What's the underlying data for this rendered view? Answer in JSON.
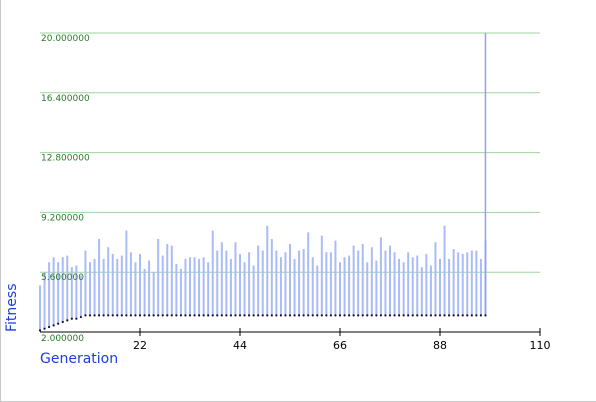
{
  "chart_data": {
    "type": "bar",
    "xlabel": "Generation",
    "ylabel": "Fitness",
    "xlim": [
      0,
      110
    ],
    "ylim": [
      2.0,
      20.0
    ],
    "grid": true,
    "x_ticks": [
      "22",
      "44",
      "66",
      "88",
      "110"
    ],
    "y_ticks": [
      "2.000000",
      "5.600000",
      "9.200000",
      "12.800000",
      "16.400000",
      "20.000000"
    ],
    "series": [
      {
        "kind": "range-bars",
        "x": [
          0,
          1,
          2,
          3,
          4,
          5,
          6,
          7,
          8,
          9,
          10,
          11,
          12,
          13,
          14,
          15,
          16,
          17,
          18,
          19,
          20,
          21,
          22,
          23,
          24,
          25,
          26,
          27,
          28,
          29,
          30,
          31,
          32,
          33,
          34,
          35,
          36,
          37,
          38,
          39,
          40,
          41,
          42,
          43,
          44,
          45,
          46,
          47,
          48,
          49,
          50,
          51,
          52,
          53,
          54,
          55,
          56,
          57,
          58,
          59,
          60,
          61,
          62,
          63,
          64,
          65,
          66,
          67,
          68,
          69,
          70,
          71,
          72,
          73,
          74,
          75,
          76,
          77,
          78,
          79,
          80,
          81,
          82,
          83,
          84,
          85,
          86,
          87,
          88,
          89,
          90,
          91,
          92,
          93,
          94,
          95,
          96,
          97,
          98
        ],
        "low": [
          2.1,
          2.2,
          2.3,
          2.4,
          2.5,
          2.6,
          2.7,
          2.8,
          2.8,
          2.9,
          3.0,
          3.0,
          3.0,
          3.0,
          3.0,
          3.0,
          3.0,
          3.0,
          3.0,
          3.0,
          3.0,
          3.0,
          3.0,
          3.0,
          3.0,
          3.0,
          3.0,
          3.0,
          3.0,
          3.0,
          3.0,
          3.0,
          3.0,
          3.0,
          3.0,
          3.0,
          3.0,
          3.0,
          3.0,
          3.0,
          3.0,
          3.0,
          3.0,
          3.0,
          3.0,
          3.0,
          3.0,
          3.0,
          3.0,
          3.0,
          3.0,
          3.0,
          3.0,
          3.0,
          3.0,
          3.0,
          3.0,
          3.0,
          3.0,
          3.0,
          3.0,
          3.0,
          3.0,
          3.0,
          3.0,
          3.0,
          3.0,
          3.0,
          3.0,
          3.0,
          3.0,
          3.0,
          3.0,
          3.0,
          3.0,
          3.0,
          3.0,
          3.0,
          3.0,
          3.0,
          3.0,
          3.0,
          3.0,
          3.0,
          3.0,
          3.0,
          3.0,
          3.0,
          3.0,
          3.0,
          3.0,
          3.0,
          3.0,
          3.0,
          3.0,
          3.0,
          3.0,
          3.0,
          3.0
        ],
        "high": [
          4.8,
          5.6,
          6.2,
          6.5,
          6.2,
          6.5,
          6.6,
          5.9,
          6.0,
          5.4,
          6.9,
          6.2,
          6.4,
          7.6,
          6.4,
          7.1,
          6.7,
          6.4,
          6.6,
          8.1,
          6.8,
          6.2,
          6.7,
          5.8,
          6.3,
          5.6,
          7.6,
          6.6,
          7.3,
          7.2,
          6.1,
          5.8,
          6.4,
          6.5,
          6.5,
          6.4,
          6.5,
          6.2,
          8.1,
          6.9,
          7.4,
          6.9,
          6.4,
          7.4,
          6.7,
          6.2,
          6.8,
          6.0,
          7.2,
          6.9,
          8.4,
          7.6,
          6.9,
          6.5,
          6.8,
          7.3,
          6.4,
          6.9,
          7.0,
          8.0,
          6.5,
          6.0,
          7.8,
          6.8,
          6.8,
          7.5,
          6.2,
          6.5,
          6.6,
          7.2,
          6.9,
          7.3,
          6.2,
          7.1,
          6.3,
          7.7,
          6.9,
          7.2,
          6.8,
          6.4,
          6.2,
          6.8,
          6.5,
          6.6,
          5.9,
          6.7,
          6.0,
          7.4,
          6.4,
          8.4,
          6.4,
          7.0,
          6.8,
          6.7,
          6.8,
          6.9,
          6.9,
          6.4,
          7.5
        ],
        "color": "#aabcf7"
      },
      {
        "kind": "points",
        "x": [
          0,
          1,
          2,
          3,
          4,
          5,
          6,
          7,
          8,
          9,
          10,
          11,
          12,
          13,
          14,
          15,
          16,
          17,
          18,
          19,
          20,
          21,
          22,
          23,
          24,
          25,
          26,
          27,
          28,
          29,
          30,
          31,
          32,
          33,
          34,
          35,
          36,
          37,
          38,
          39,
          40,
          41,
          42,
          43,
          44,
          45,
          46,
          47,
          48,
          49,
          50,
          51,
          52,
          53,
          54,
          55,
          56,
          57,
          58,
          59,
          60,
          61,
          62,
          63,
          64,
          65,
          66,
          67,
          68,
          69,
          70,
          71,
          72,
          73,
          74,
          75,
          76,
          77,
          78,
          79,
          80,
          81,
          82,
          83,
          84,
          85,
          86,
          87,
          88,
          89,
          90,
          91,
          92,
          93,
          94,
          95,
          96,
          97,
          98
        ],
        "y": [
          2.1,
          2.2,
          2.3,
          2.4,
          2.5,
          2.6,
          2.7,
          2.8,
          2.8,
          2.9,
          3.0,
          3.0,
          3.0,
          3.0,
          3.0,
          3.0,
          3.0,
          3.0,
          3.0,
          3.0,
          3.0,
          3.0,
          3.0,
          3.0,
          3.0,
          3.0,
          3.0,
          3.0,
          3.0,
          3.0,
          3.0,
          3.0,
          3.0,
          3.0,
          3.0,
          3.0,
          3.0,
          3.0,
          3.0,
          3.0,
          3.0,
          3.0,
          3.0,
          3.0,
          3.0,
          3.0,
          3.0,
          3.0,
          3.0,
          3.0,
          3.0,
          3.0,
          3.0,
          3.0,
          3.0,
          3.0,
          3.0,
          3.0,
          3.0,
          3.0,
          3.0,
          3.0,
          3.0,
          3.0,
          3.0,
          3.0,
          3.0,
          3.0,
          3.0,
          3.0,
          3.0,
          3.0,
          3.0,
          3.0,
          3.0,
          3.0,
          3.0,
          3.0,
          3.0,
          3.0,
          3.0,
          3.0,
          3.0,
          3.0,
          3.0,
          3.0,
          3.0,
          3.0,
          3.0,
          3.0,
          3.0,
          3.0,
          3.0,
          3.0,
          3.0,
          3.0,
          3.0,
          3.0,
          3.0
        ],
        "color": "#111133"
      },
      {
        "kind": "highlight-bar",
        "x": 98,
        "low": 3.0,
        "high": 20.0,
        "color": "#8f9ff5"
      }
    ],
    "colors": {
      "grid": "#9fd39f",
      "ytick": "#2a7a2a",
      "label": "#1a3de0"
    }
  }
}
